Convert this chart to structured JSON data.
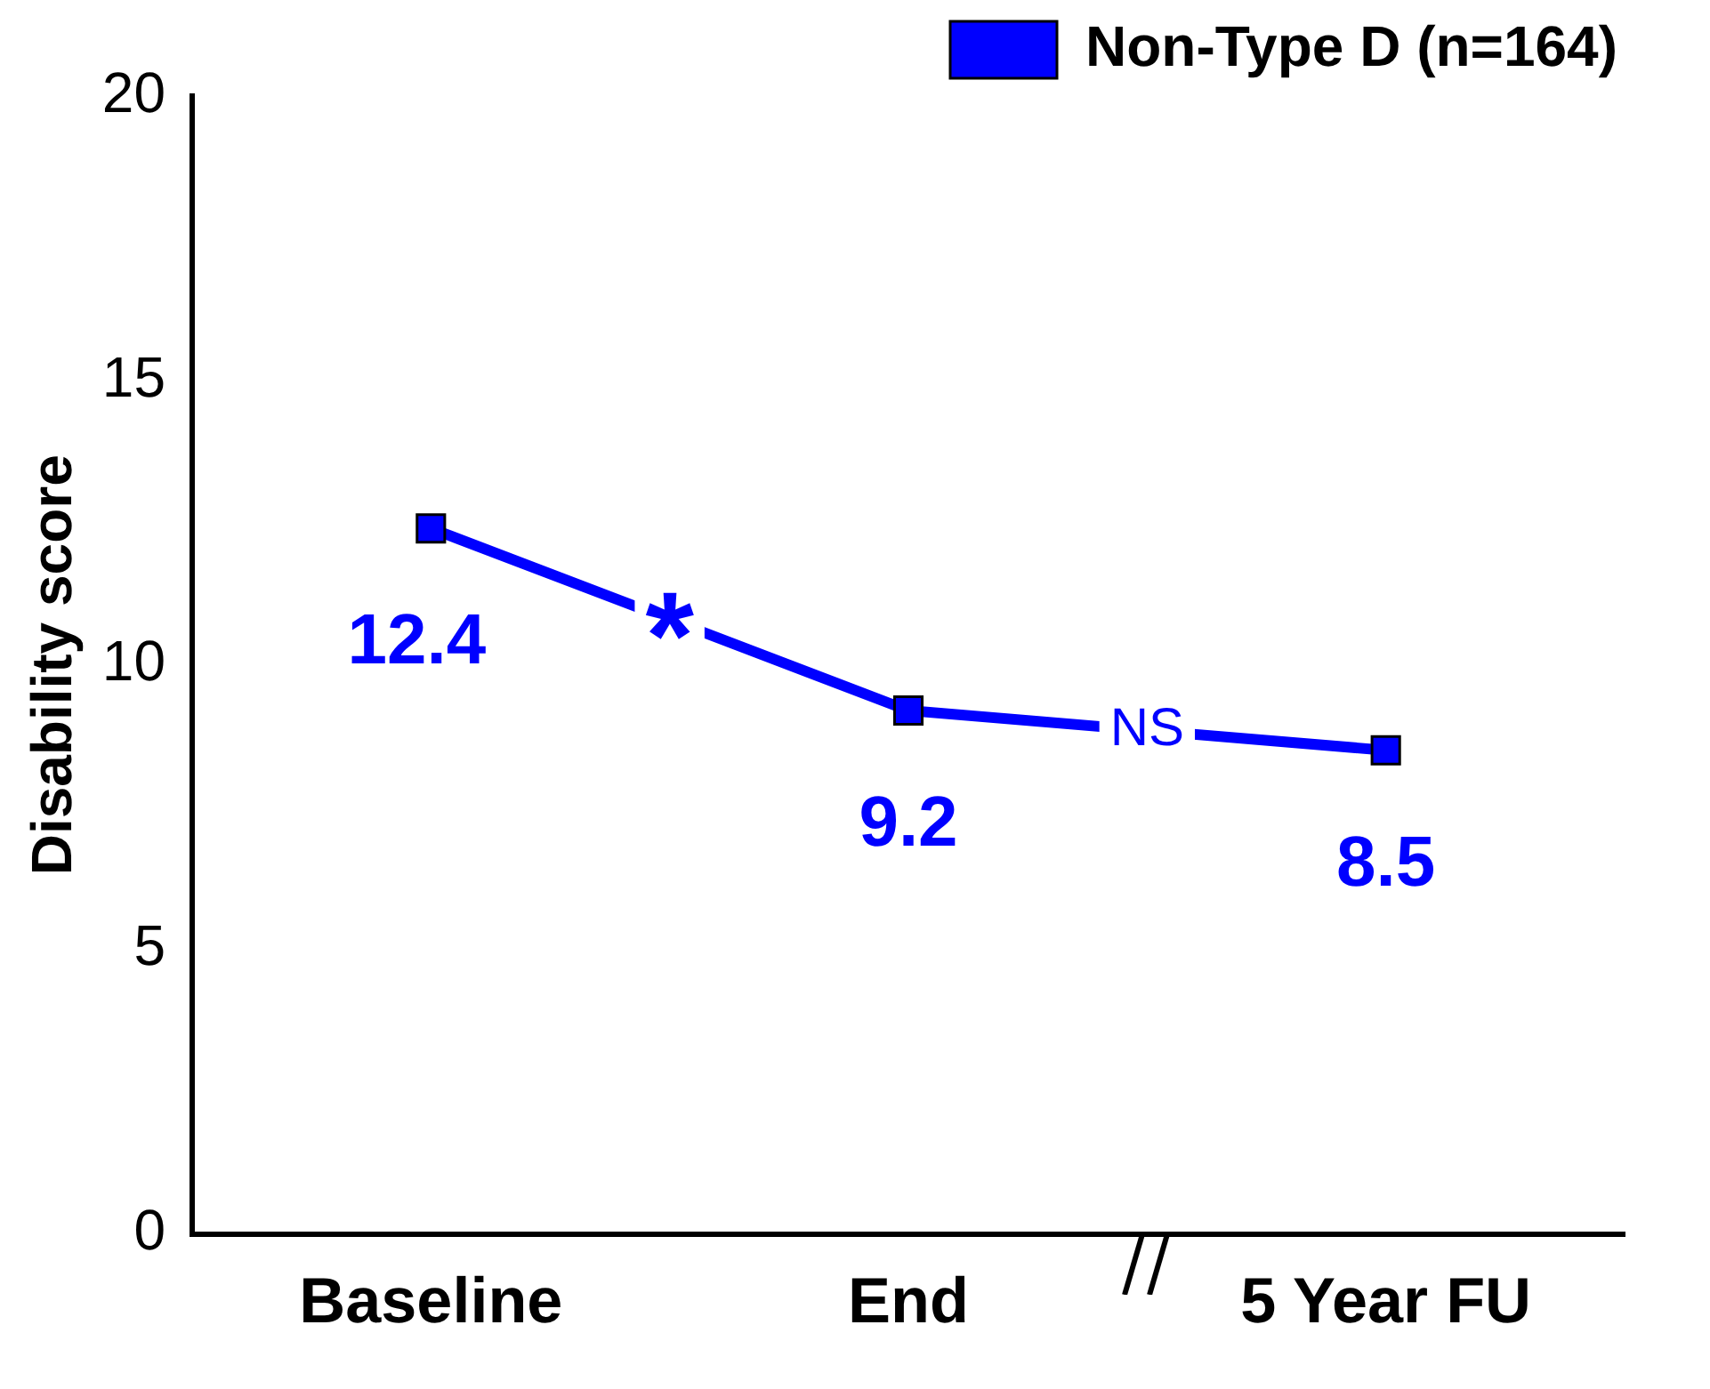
{
  "chart_data": {
    "type": "line",
    "ylabel": "Disability score",
    "categories": [
      "Baseline",
      "End",
      "5 Year FU"
    ],
    "series": [
      {
        "name": "Non-Type D (n=164)",
        "color": "#0000ff",
        "values": [
          12.4,
          9.2,
          8.5
        ]
      }
    ],
    "ylim": [
      0,
      20
    ],
    "yticks": [
      0,
      5,
      10,
      15,
      20
    ],
    "grid": false,
    "legend": "top right",
    "marker": "square",
    "line_style": "solid",
    "data_labels": true,
    "annotations": [
      "*",
      "NS"
    ]
  }
}
